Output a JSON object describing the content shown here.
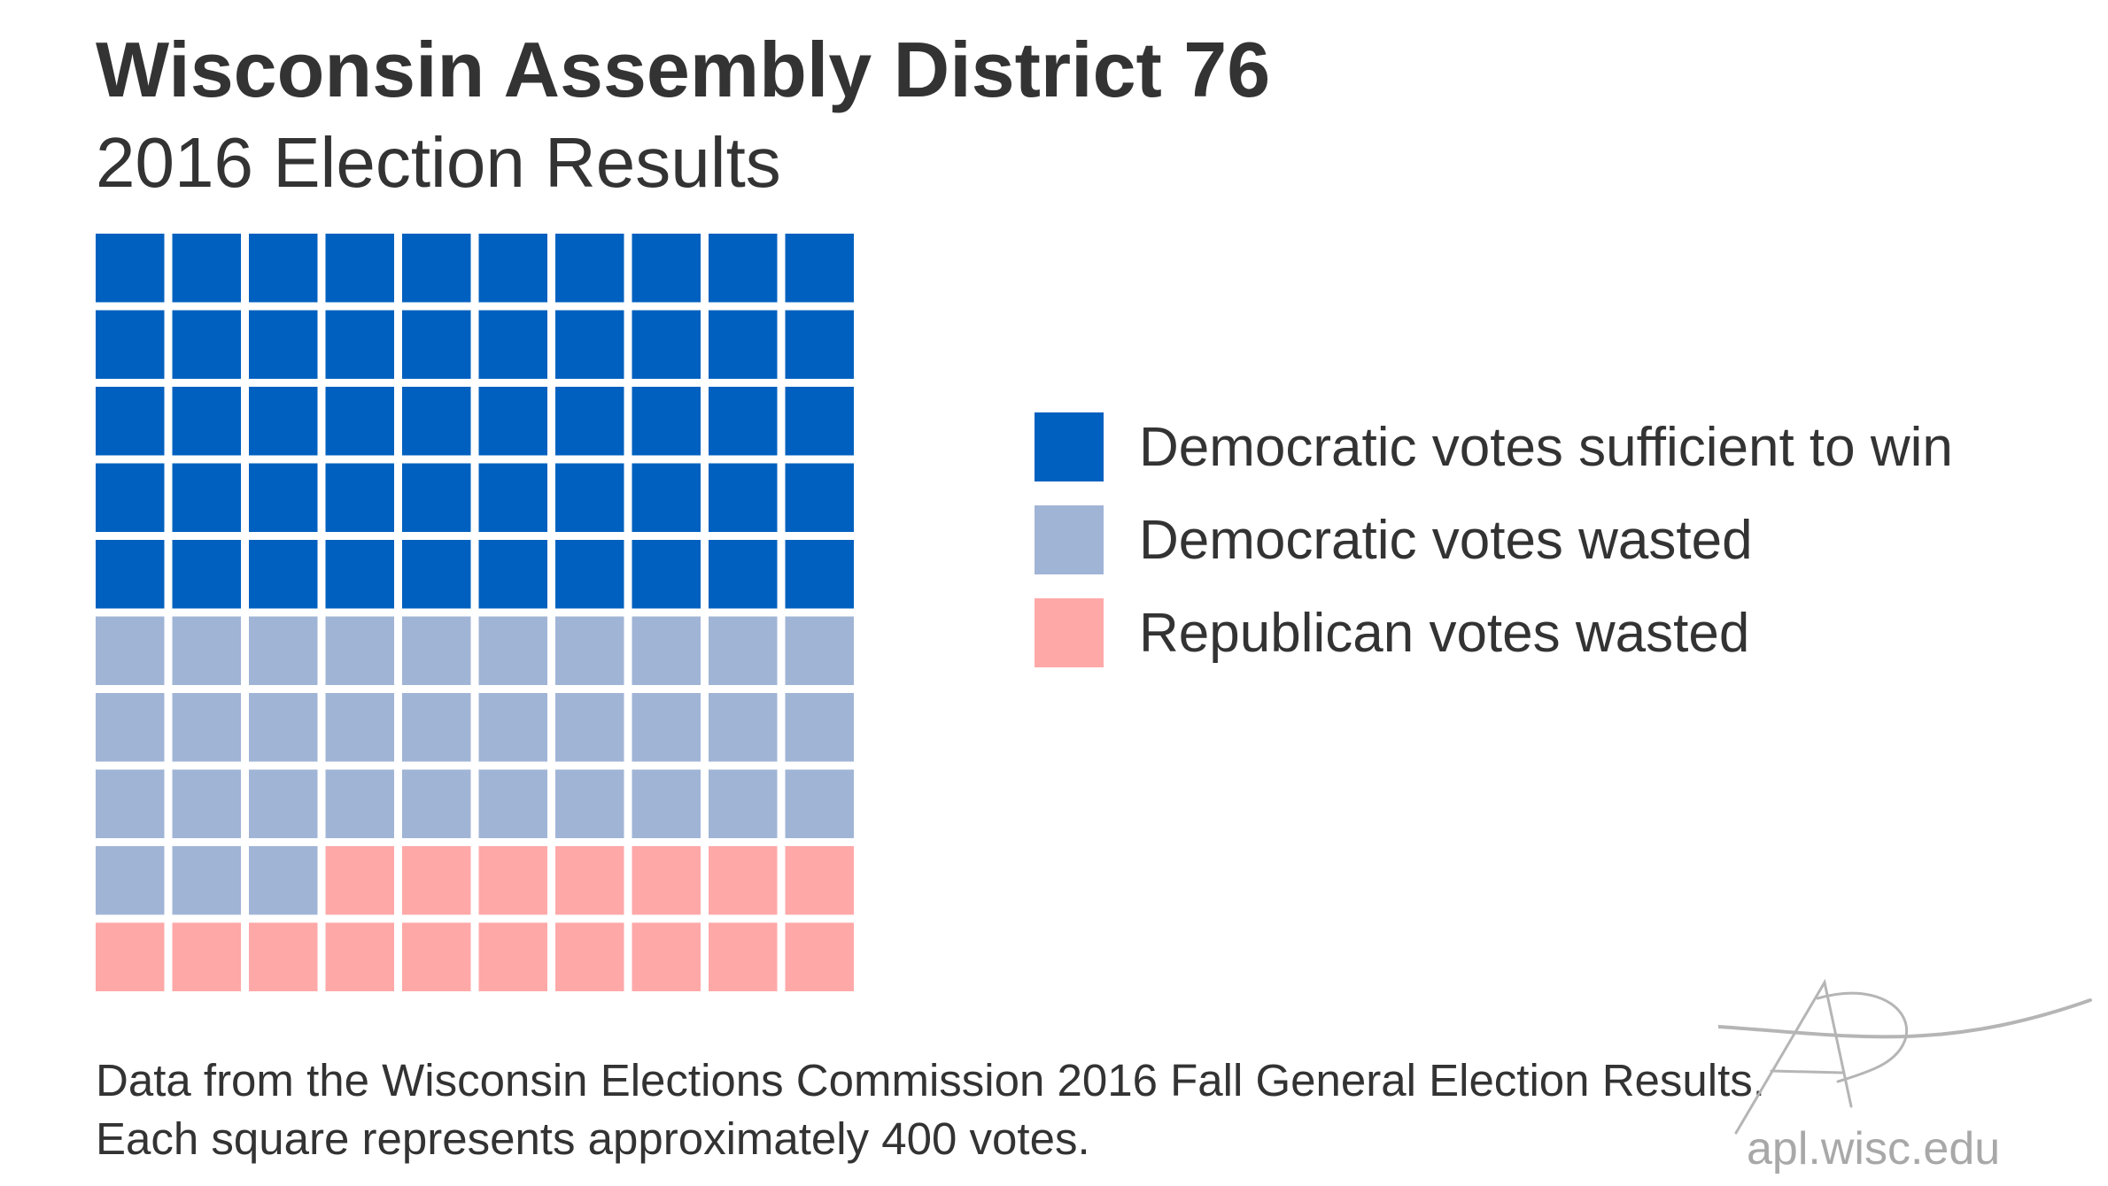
{
  "title": "Wisconsin Assembly District 76",
  "subtitle": "2016 Election Results",
  "chart_data": {
    "type": "waffle",
    "grid": {
      "rows": 10,
      "columns": 10
    },
    "total_squares": 100,
    "series": [
      {
        "name": "Democratic votes sufficient to win",
        "squares": 50,
        "color": "#0060bf"
      },
      {
        "name": "Democratic votes wasted",
        "squares": 33,
        "color": "#a0b4d6"
      },
      {
        "name": "Republican votes wasted",
        "squares": 17,
        "color": "#ffa8a8"
      }
    ],
    "fill_order": "row-major, top-left to bottom-right",
    "legend_position": "right"
  },
  "footnote": {
    "line1": "Data from the Wisconsin Elections Commission 2016 Fall General Election Results.",
    "line2": "Each square represents approximately 400 votes."
  },
  "logo": {
    "text": "apl.wisc.edu",
    "icon": "apl-logo-icon",
    "color": "#a8a8a8"
  }
}
